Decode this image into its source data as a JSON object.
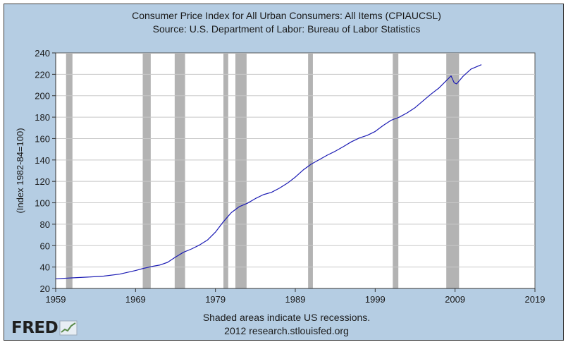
{
  "header": {
    "title": "Consumer Price Index for All Urban Consumers: All Items (CPIAUCSL)",
    "source": "Source: U.S. Department of Labor: Bureau of Labor Statistics"
  },
  "footer": {
    "note": "Shaded areas indicate US recessions.",
    "credit": "2012 research.stlouisfed.org",
    "logo_text": "FRED"
  },
  "colors": {
    "background": "#b5cde3",
    "plot_bg": "#ffffff",
    "line": "#1c1cb4",
    "recession": "#b3b3b3",
    "grid": "#c8c8c8"
  },
  "chart_data": {
    "type": "line",
    "title": "Consumer Price Index for All Urban Consumers: All Items (CPIAUCSL)",
    "subtitle": "Source: U.S. Department of Labor: Bureau of Labor Statistics",
    "xlabel": "",
    "ylabel": "(Index 1982-84=100)",
    "xlim": [
      1959,
      2019
    ],
    "ylim": [
      20,
      240
    ],
    "x_ticks": [
      1959,
      1969,
      1979,
      1989,
      1999,
      2009,
      2019
    ],
    "y_ticks": [
      20,
      40,
      60,
      80,
      100,
      120,
      140,
      160,
      180,
      200,
      220,
      240
    ],
    "grid": "horizontal",
    "recessions": [
      {
        "start": 1960.3,
        "end": 1961.1
      },
      {
        "start": 1969.9,
        "end": 1970.9
      },
      {
        "start": 1973.9,
        "end": 1975.2
      },
      {
        "start": 1980.0,
        "end": 1980.6
      },
      {
        "start": 1981.5,
        "end": 1982.9
      },
      {
        "start": 1990.6,
        "end": 1991.2
      },
      {
        "start": 2001.2,
        "end": 2001.9
      },
      {
        "start": 2007.9,
        "end": 2009.5
      }
    ],
    "series": [
      {
        "name": "CPIAUCSL",
        "x": [
          1959,
          1961,
          1963,
          1965,
          1967,
          1969,
          1970,
          1971,
          1972,
          1973,
          1974,
          1975,
          1976,
          1977,
          1978,
          1979,
          1980,
          1981,
          1982,
          1983,
          1984,
          1985,
          1986,
          1987,
          1988,
          1989,
          1990,
          1991,
          1992,
          1993,
          1994,
          1995,
          1996,
          1997,
          1998,
          1999,
          2000,
          2001,
          2002,
          2003,
          2004,
          2005,
          2006,
          2007,
          2008.5,
          2008.9,
          2009.2,
          2010,
          2011,
          2012.3
        ],
        "values": [
          29.0,
          29.9,
          30.6,
          31.5,
          33.4,
          36.7,
          38.8,
          40.5,
          41.8,
          44.4,
          49.3,
          53.8,
          56.9,
          60.6,
          65.2,
          72.6,
          82.4,
          90.9,
          96.5,
          99.6,
          103.9,
          107.6,
          109.7,
          113.6,
          118.3,
          124.0,
          130.7,
          136.2,
          140.3,
          144.5,
          148.2,
          152.4,
          156.9,
          160.5,
          163.0,
          166.6,
          172.2,
          177.1,
          179.9,
          184.0,
          188.9,
          195.3,
          201.6,
          207.3,
          218.5,
          212.0,
          211.1,
          218.1,
          224.9,
          229.0
        ]
      }
    ]
  }
}
